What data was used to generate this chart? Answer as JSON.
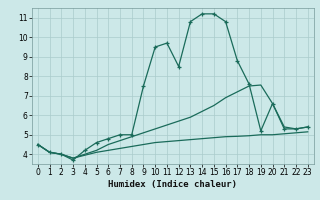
{
  "xlabel": "Humidex (Indice chaleur)",
  "bg_color": "#cce8e8",
  "grid_color": "#aacccc",
  "line_color": "#1a6b5a",
  "xlim": [
    -0.5,
    23.5
  ],
  "ylim": [
    3.5,
    11.5
  ],
  "yticks": [
    4,
    5,
    6,
    7,
    8,
    9,
    10,
    11
  ],
  "xticks": [
    0,
    1,
    2,
    3,
    4,
    5,
    6,
    7,
    8,
    9,
    10,
    11,
    12,
    13,
    14,
    15,
    16,
    17,
    18,
    19,
    20,
    21,
    22,
    23
  ],
  "line_main_x": [
    0,
    1,
    2,
    3,
    4,
    5,
    6,
    7,
    8,
    9,
    10,
    11,
    12,
    13,
    14,
    15,
    16,
    17,
    18,
    19,
    20,
    21,
    22,
    23
  ],
  "line_main_y": [
    4.5,
    4.1,
    4.0,
    3.7,
    4.2,
    4.6,
    4.8,
    5.0,
    5.0,
    7.5,
    9.5,
    9.7,
    8.5,
    10.8,
    11.2,
    11.2,
    10.8,
    8.8,
    7.6,
    5.2,
    6.6,
    5.3,
    5.3,
    5.4
  ],
  "line_low_x": [
    0,
    1,
    2,
    3,
    4,
    5,
    6,
    7,
    8,
    9,
    10,
    11,
    12,
    13,
    14,
    15,
    16,
    17,
    18,
    19,
    20,
    21,
    22,
    23
  ],
  "line_low_y": [
    4.5,
    4.1,
    4.0,
    3.8,
    3.95,
    4.1,
    4.2,
    4.3,
    4.4,
    4.5,
    4.6,
    4.65,
    4.7,
    4.75,
    4.8,
    4.85,
    4.9,
    4.92,
    4.95,
    5.0,
    5.0,
    5.05,
    5.1,
    5.15
  ],
  "line_mid_x": [
    0,
    1,
    2,
    3,
    4,
    5,
    6,
    7,
    8,
    9,
    10,
    11,
    12,
    13,
    14,
    15,
    16,
    17,
    18,
    19,
    20,
    21,
    22,
    23
  ],
  "line_mid_y": [
    4.5,
    4.1,
    4.0,
    3.8,
    4.0,
    4.2,
    4.5,
    4.7,
    4.9,
    5.1,
    5.3,
    5.5,
    5.7,
    5.9,
    6.2,
    6.5,
    6.9,
    7.2,
    7.5,
    7.55,
    6.6,
    5.4,
    5.3,
    5.4
  ]
}
